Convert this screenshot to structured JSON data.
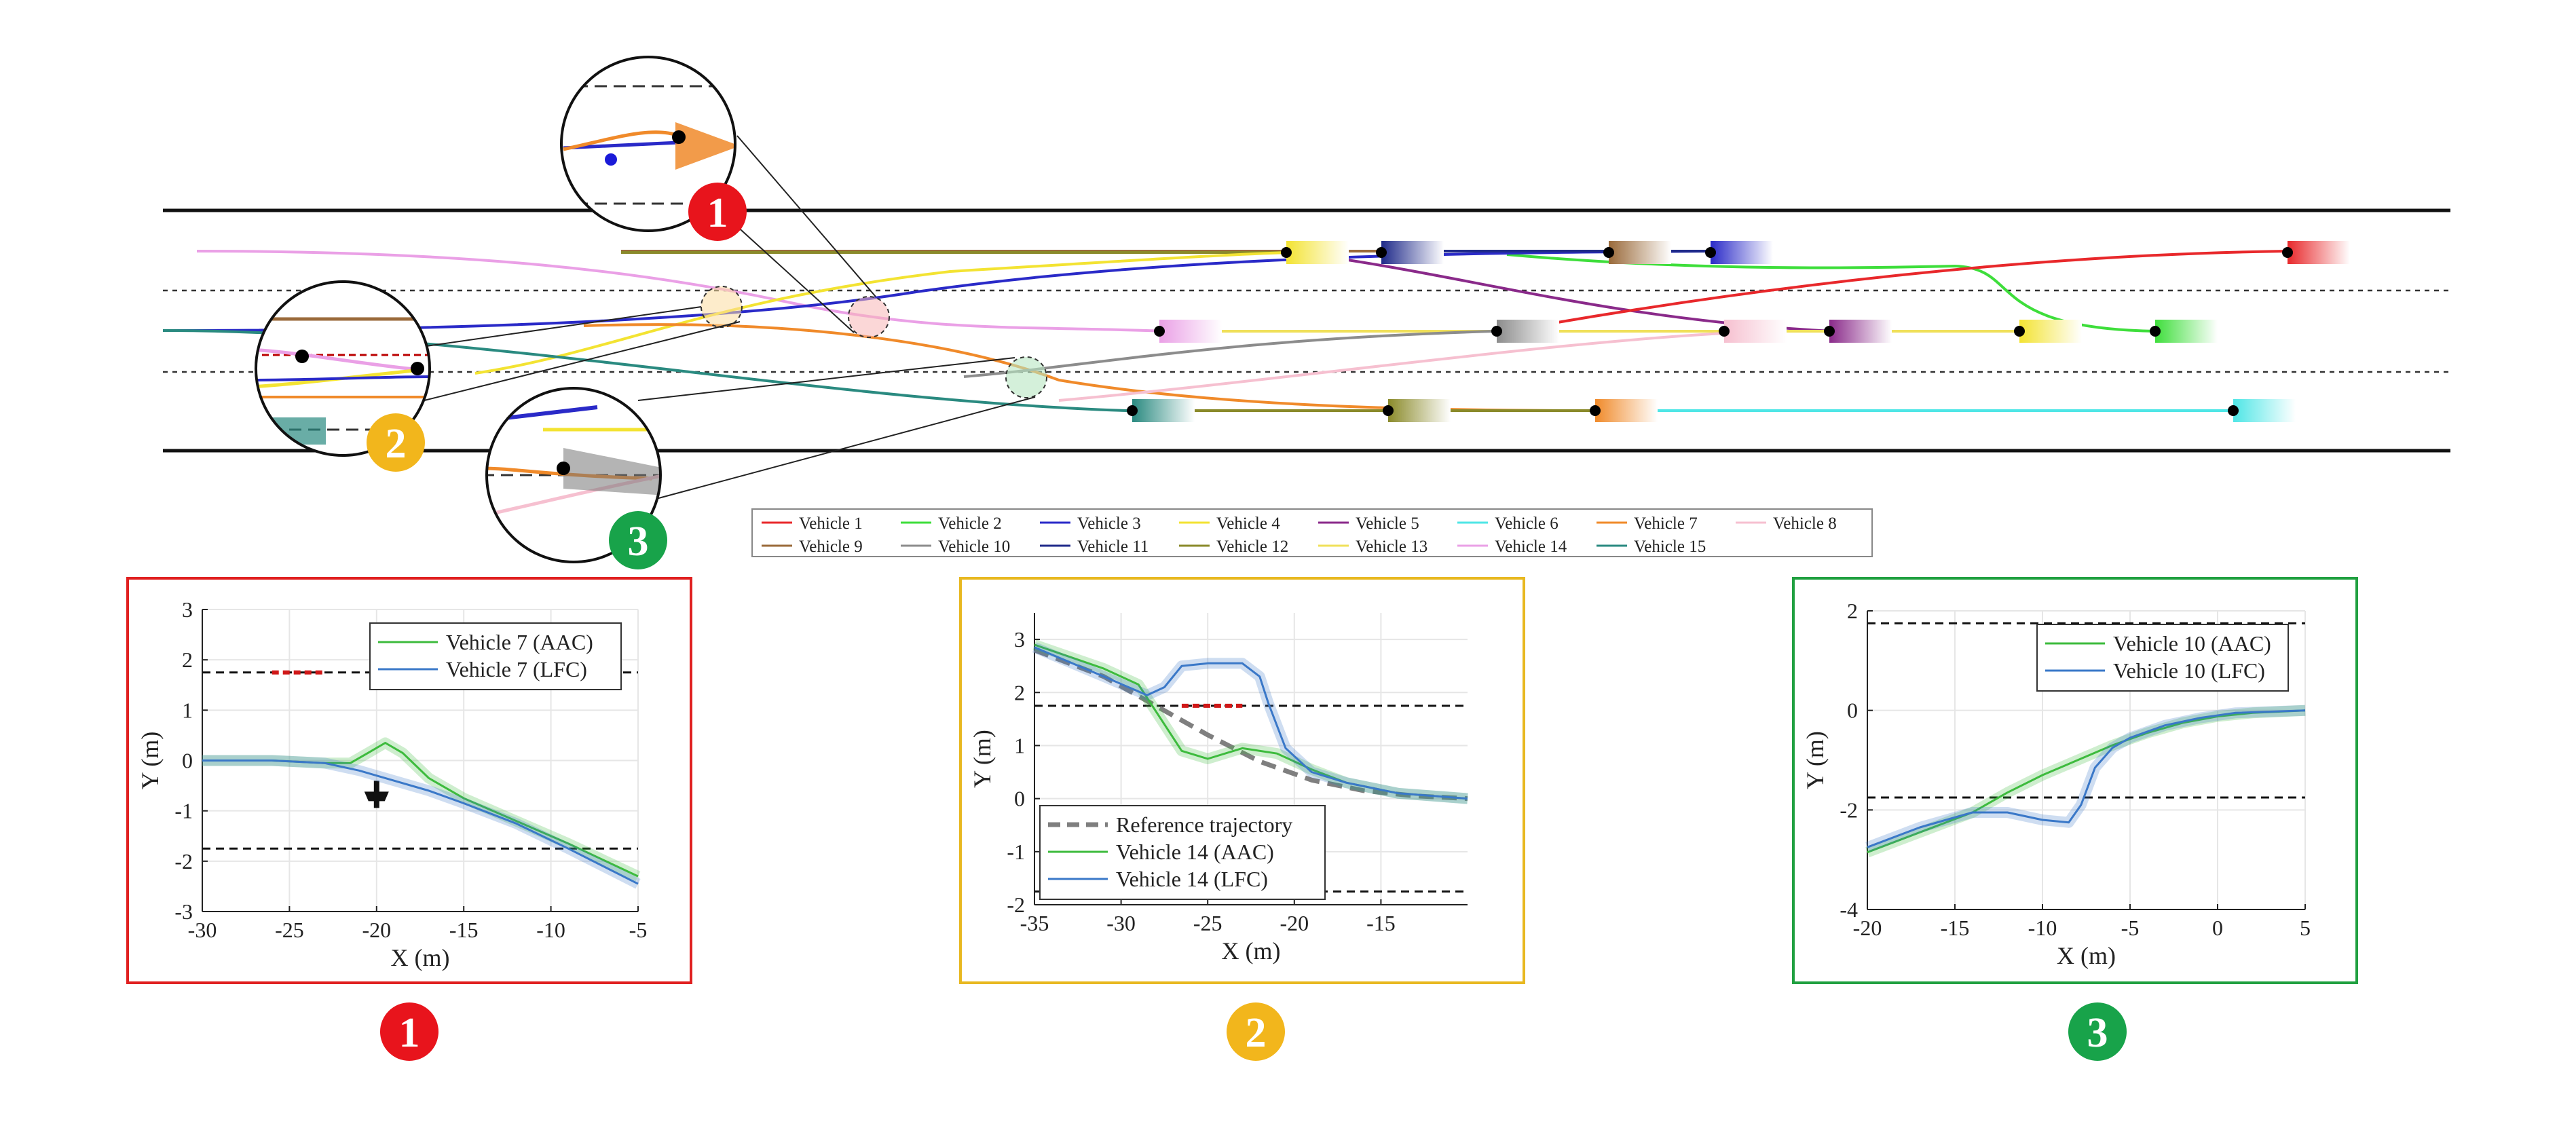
{
  "colors": {
    "vehicle_1": "#e8282b",
    "vehicle_2": "#3ede3b",
    "vehicle_3": "#2a2ac8",
    "vehicle_4": "#f3e332",
    "vehicle_5": "#8a2a8a",
    "vehicle_6": "#4fe6e6",
    "vehicle_7": "#f08a2a",
    "vehicle_8": "#f6c0d0",
    "vehicle_9": "#9a6a3a",
    "vehicle_10": "#8c8c8c",
    "vehicle_11": "#1f2a8a",
    "vehicle_12": "#8a8a2a",
    "vehicle_13": "#f0e05a",
    "vehicle_14": "#eaa0e6",
    "vehicle_15": "#2a8a80",
    "aac": "#3dbb3d",
    "lfc": "#3a78c8",
    "reference": "#7f7f7f",
    "frame_1": "#e02020",
    "frame_2": "#e8b820",
    "frame_3": "#20a040",
    "badge_1": "#e8141c",
    "badge_2": "#f2b61c",
    "badge_3": "#18a34a"
  },
  "overview": {
    "legend": [
      "Vehicle 1",
      "Vehicle 2",
      "Vehicle 3",
      "Vehicle 4",
      "Vehicle 5",
      "Vehicle 6",
      "Vehicle 7",
      "Vehicle 8",
      "Vehicle 9",
      "Vehicle 10",
      "Vehicle 11",
      "Vehicle 12",
      "Vehicle 13",
      "Vehicle 14",
      "Vehicle 15"
    ],
    "badges": [
      "1",
      "2",
      "3"
    ]
  },
  "chart_data": [
    {
      "type": "line",
      "badge": "1",
      "xlabel": "X (m)",
      "ylabel": "Y (m)",
      "xlim": [
        -30,
        -5
      ],
      "ylim": [
        -3,
        3
      ],
      "xticks": [
        -30,
        -25,
        -20,
        -15,
        -10,
        -5
      ],
      "yticks": [
        -3,
        -2,
        -1,
        0,
        1,
        2,
        3
      ],
      "xtick_labels": [
        "-30",
        "-25",
        "-20",
        "-15",
        "-10",
        "-5"
      ],
      "ytick_labels": [
        "-3",
        "-2",
        "-1",
        "0",
        "1",
        "2",
        "3"
      ],
      "grid": true,
      "legend_position": "top-right",
      "lane_lines": [
        1.75,
        -1.75
      ],
      "series": [
        {
          "name": "Vehicle 7 (AAC)",
          "color_key": "aac",
          "x": [
            -30,
            -26,
            -23,
            -21.5,
            -20.5,
            -19.5,
            -18.5,
            -17,
            -15,
            -12,
            -9,
            -5
          ],
          "y": [
            0,
            0,
            -0.05,
            -0.05,
            0.15,
            0.35,
            0.15,
            -0.35,
            -0.75,
            -1.2,
            -1.65,
            -2.3
          ]
        },
        {
          "name": "Vehicle 7 (LFC)",
          "color_key": "lfc",
          "x": [
            -30,
            -26,
            -23,
            -21,
            -19,
            -17,
            -15,
            -12,
            -9,
            -5
          ],
          "y": [
            0,
            0,
            -0.05,
            -0.2,
            -0.4,
            -0.6,
            -0.85,
            -1.25,
            -1.75,
            -2.45
          ]
        }
      ]
    },
    {
      "type": "line",
      "badge": "2",
      "xlabel": "X (m)",
      "ylabel": "Y (m)",
      "xlim": [
        -35,
        -10
      ],
      "ylim": [
        -2,
        3.5
      ],
      "xticks": [
        -35,
        -30,
        -25,
        -20,
        -15
      ],
      "yticks": [
        -2,
        -1,
        0,
        1,
        2,
        3
      ],
      "xtick_labels": [
        "-35",
        "-30",
        "-25",
        "-20",
        "-15"
      ],
      "ytick_labels": [
        "-2",
        "-1",
        "0",
        "1",
        "2",
        "3"
      ],
      "grid": true,
      "legend_position": "bottom-left",
      "lane_lines": [
        1.75,
        -1.75
      ],
      "series": [
        {
          "name": "Reference trajectory",
          "color_key": "reference",
          "dashed": true,
          "x": [
            -35,
            -31,
            -28,
            -25,
            -22,
            -19,
            -16,
            -13,
            -10
          ],
          "y": [
            2.8,
            2.3,
            1.75,
            1.2,
            0.7,
            0.35,
            0.15,
            0.05,
            0
          ]
        },
        {
          "name": "Vehicle 14 (AAC)",
          "color_key": "aac",
          "x": [
            -35,
            -31,
            -29,
            -27.5,
            -26.5,
            -25,
            -23,
            -21,
            -19,
            -17,
            -14,
            -10
          ],
          "y": [
            2.9,
            2.45,
            2.15,
            1.4,
            0.9,
            0.75,
            0.95,
            0.85,
            0.55,
            0.3,
            0.1,
            0
          ]
        },
        {
          "name": "Vehicle 14 (LFC)",
          "color_key": "lfc",
          "x": [
            -35,
            -31,
            -28.5,
            -27.5,
            -26.5,
            -25,
            -23,
            -22,
            -21.5,
            -20.5,
            -19,
            -17,
            -14,
            -10
          ],
          "y": [
            2.85,
            2.3,
            1.95,
            2.1,
            2.5,
            2.55,
            2.55,
            2.3,
            1.8,
            0.95,
            0.5,
            0.3,
            0.1,
            0
          ]
        }
      ]
    },
    {
      "type": "line",
      "badge": "3",
      "xlabel": "X (m)",
      "ylabel": "Y (m)",
      "xlim": [
        -20,
        5
      ],
      "ylim": [
        -4,
        2
      ],
      "xticks": [
        -20,
        -15,
        -10,
        -5,
        0,
        5
      ],
      "yticks": [
        -4,
        -2,
        0,
        2
      ],
      "xtick_labels": [
        "-20",
        "-15",
        "-10",
        "-5",
        "0",
        "5"
      ],
      "ytick_labels": [
        "-4",
        "-2",
        "0",
        "2"
      ],
      "grid": true,
      "legend_position": "top-right",
      "lane_lines": [
        1.75,
        -1.75
      ],
      "series": [
        {
          "name": "Vehicle 10 (AAC)",
          "color_key": "aac",
          "x": [
            -20,
            -17,
            -14,
            -12,
            -10,
            -8,
            -6,
            -4,
            -2,
            0,
            2,
            5
          ],
          "y": [
            -2.85,
            -2.45,
            -2.05,
            -1.65,
            -1.3,
            -1.0,
            -0.7,
            -0.45,
            -0.25,
            -0.12,
            -0.05,
            0
          ]
        },
        {
          "name": "Vehicle 10 (LFC)",
          "color_key": "lfc",
          "x": [
            -20,
            -17,
            -14,
            -12,
            -10,
            -8.5,
            -7.8,
            -7,
            -6,
            -5,
            -3,
            -1,
            1,
            5
          ],
          "y": [
            -2.75,
            -2.35,
            -2.05,
            -2.05,
            -2.2,
            -2.25,
            -1.9,
            -1.15,
            -0.75,
            -0.55,
            -0.3,
            -0.15,
            -0.05,
            0
          ]
        }
      ]
    }
  ]
}
